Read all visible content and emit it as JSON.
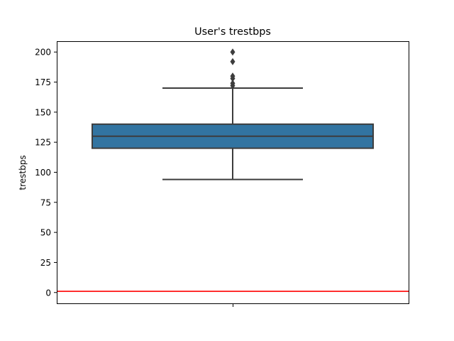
{
  "chart_data": {
    "type": "box",
    "title": "User's trestbps",
    "ylabel": "trestbps",
    "xlabel": "",
    "ylim": [
      -9,
      209
    ],
    "yticks": [
      0,
      25,
      50,
      75,
      100,
      125,
      150,
      175,
      200
    ],
    "grid": false,
    "box": {
      "whisker_low": 94,
      "q1": 120,
      "median": 130,
      "q3": 140,
      "whisker_high": 170,
      "outliers": [
        172,
        174,
        178,
        180,
        192,
        200
      ],
      "color": "#3274a1",
      "line_color": "#3d3d3d"
    },
    "reference_line": {
      "y": 1,
      "color": "#ff0000"
    }
  }
}
